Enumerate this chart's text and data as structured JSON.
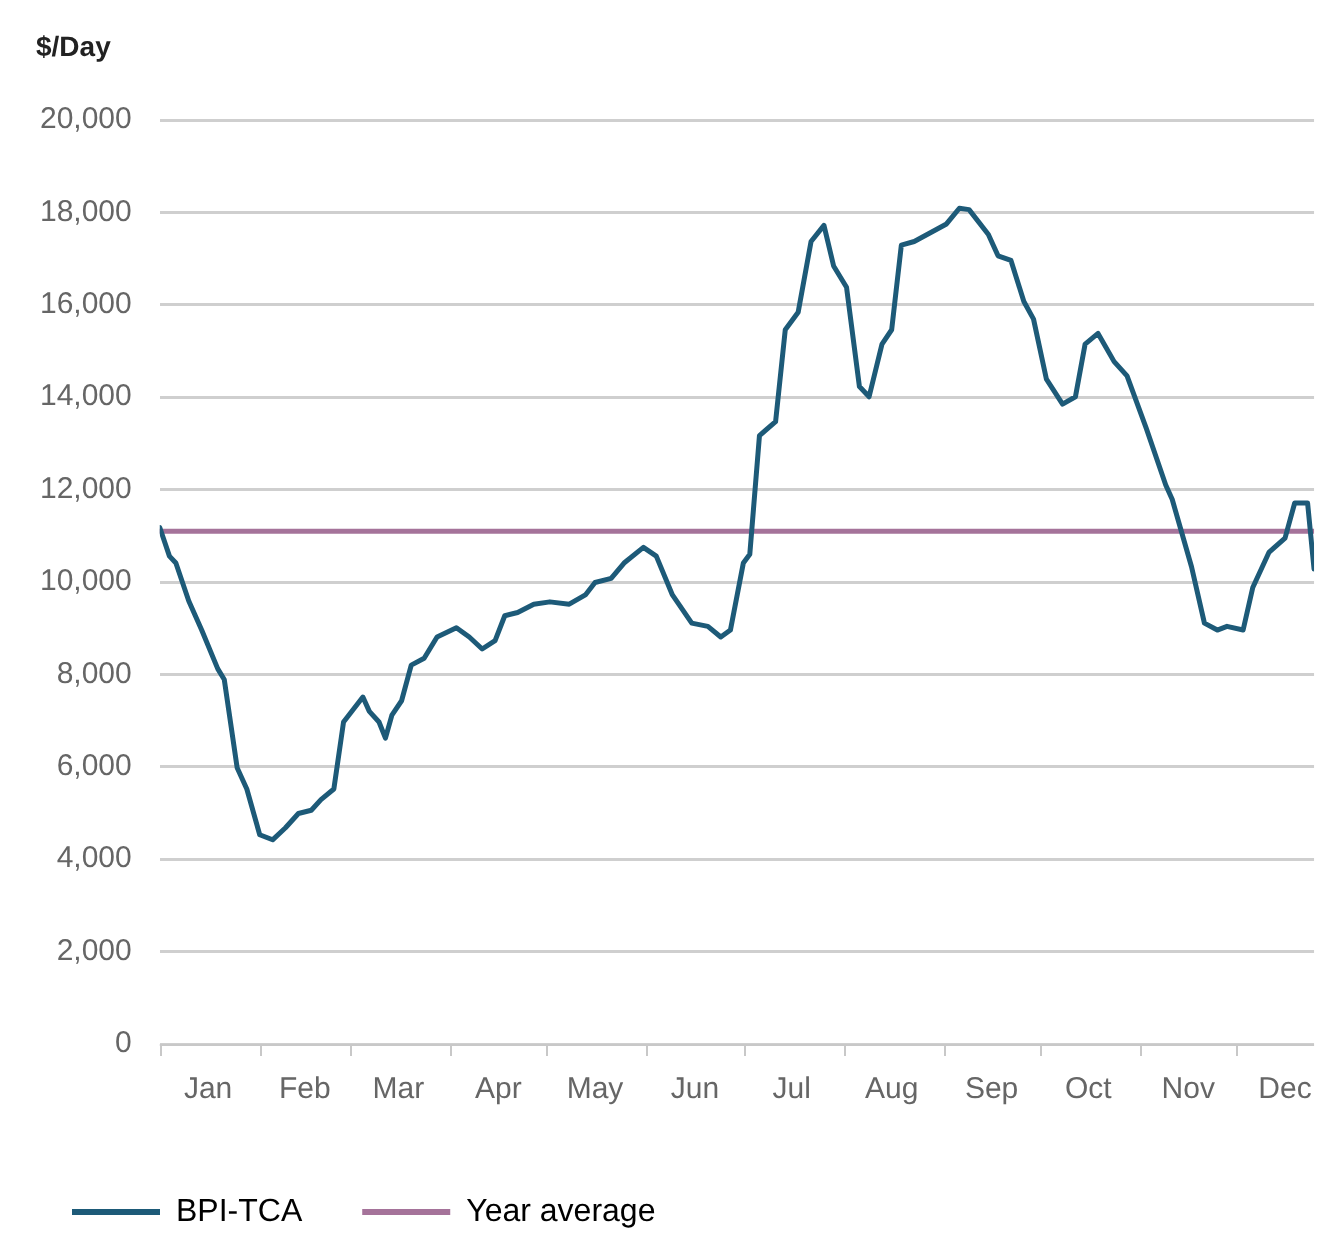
{
  "chart_data": {
    "type": "line",
    "ylabel": "$/Day",
    "xlim": [
      "--01-01",
      "--12-25"
    ],
    "xticks": [
      {
        "value": "--01-01",
        "label": null
      },
      {
        "value": "--01-16",
        "label": "Jan"
      },
      {
        "value": "--02-01",
        "label": null
      },
      {
        "value": "--02-15",
        "label": "Feb"
      },
      {
        "value": "--03-01",
        "label": null
      },
      {
        "value": "--03-16",
        "label": "Mar"
      },
      {
        "value": "--04-01",
        "label": null
      },
      {
        "value": "--04-16",
        "label": "Apr"
      },
      {
        "value": "--05-01",
        "label": null
      },
      {
        "value": "--05-16",
        "label": "May"
      },
      {
        "value": "--06-01",
        "label": null
      },
      {
        "value": "--06-16",
        "label": "Jun"
      },
      {
        "value": "--07-01",
        "label": null
      },
      {
        "value": "--07-16",
        "label": "Jul"
      },
      {
        "value": "--08-01",
        "label": null
      },
      {
        "value": "--08-16",
        "label": "Aug"
      },
      {
        "value": "--09-01",
        "label": null
      },
      {
        "value": "--09-16",
        "label": "Sep"
      },
      {
        "value": "--10-01",
        "label": null
      },
      {
        "value": "--10-16",
        "label": "Oct"
      },
      {
        "value": "--11-01",
        "label": null
      },
      {
        "value": "--11-16",
        "label": "Nov"
      },
      {
        "value": "--12-01",
        "label": null
      },
      {
        "value": "--12-16",
        "label": "Dec"
      }
    ],
    "ylim": [
      0,
      20000
    ],
    "yticks": [
      {
        "value": 0,
        "label": "0"
      },
      {
        "value": 2000,
        "label": "2,000"
      },
      {
        "value": 4000,
        "label": "4,000"
      },
      {
        "value": 6000,
        "label": "6,000"
      },
      {
        "value": 8000,
        "label": "8,000"
      },
      {
        "value": 10000,
        "label": "10,000"
      },
      {
        "value": 12000,
        "label": "12,000"
      },
      {
        "value": 14000,
        "label": "14,000"
      },
      {
        "value": 16000,
        "label": "16,000"
      },
      {
        "value": 18000,
        "label": "18,000"
      },
      {
        "value": 20000,
        "label": "20,000"
      }
    ],
    "grid": "y",
    "legend": "bottom left",
    "marker": "none",
    "line_style": "solid",
    "series": [
      {
        "name": "BPI-TCA",
        "color": "#1d5a78",
        "x": [
          "--01-01",
          "--01-04",
          "--01-06",
          "--01-10",
          "--01-14",
          "--01-19",
          "--01-21",
          "--01-25",
          "--01-28",
          "--02-01",
          "--02-05",
          "--02-09",
          "--02-13",
          "--02-17",
          "--02-20",
          "--02-24",
          "--02-27",
          "--03-05",
          "--03-07",
          "--03-10",
          "--03-12",
          "--03-14",
          "--03-17",
          "--03-20",
          "--03-24",
          "--03-28",
          "--04-03",
          "--04-07",
          "--04-11",
          "--04-15",
          "--04-18",
          "--04-22",
          "--04-27",
          "--05-02",
          "--05-08",
          "--05-13",
          "--05-16",
          "--05-21",
          "--05-25",
          "--05-31",
          "--06-04",
          "--06-09",
          "--06-15",
          "--06-20",
          "--06-24",
          "--06-27",
          "--07-01",
          "--07-03",
          "--07-06",
          "--07-11",
          "--07-14",
          "--07-18",
          "--07-22",
          "--07-26",
          "--07-29",
          "--08-02",
          "--08-06",
          "--08-09",
          "--08-13",
          "--08-16",
          "--08-19",
          "--08-23",
          "--08-27",
          "--09-02",
          "--09-06",
          "--09-09",
          "--09-15",
          "--09-18",
          "--09-22",
          "--09-26",
          "--09-29",
          "--10-03",
          "--10-08",
          "--10-12",
          "--10-15",
          "--10-19",
          "--10-24",
          "--10-28",
          "--11-03",
          "--11-09",
          "--11-11",
          "--11-17",
          "--11-21",
          "--11-25",
          "--11-28",
          "--12-03",
          "--12-06",
          "--12-11",
          "--12-16",
          "--12-19",
          "--12-23",
          "--12-25"
        ],
        "values": [
          11180,
          10560,
          10410,
          9590,
          8960,
          8120,
          7890,
          5980,
          5520,
          4530,
          4420,
          4680,
          4990,
          5060,
          5290,
          5520,
          6970,
          7510,
          7200,
          6970,
          6620,
          7120,
          7430,
          8200,
          8350,
          8810,
          9010,
          8810,
          8550,
          8730,
          9270,
          9340,
          9520,
          9570,
          9520,
          9720,
          9990,
          10080,
          10410,
          10750,
          10560,
          9720,
          9110,
          9040,
          8810,
          8960,
          10410,
          10600,
          13170,
          13470,
          15460,
          15840,
          17370,
          17720,
          16840,
          16380,
          14230,
          14010,
          15150,
          15460,
          17290,
          17370,
          17520,
          17750,
          18090,
          18060,
          17520,
          17060,
          16960,
          16070,
          15690,
          14390,
          13850,
          14010,
          15150,
          15380,
          14770,
          14460,
          13320,
          12100,
          11790,
          10330,
          9110,
          8960,
          9040,
          8960,
          9880,
          10640,
          10950,
          11710,
          11710,
          10280
        ]
      },
      {
        "name": "Year average",
        "color": "#a5739a",
        "x": [
          "--01-01",
          "--12-25"
        ],
        "values": [
          11100,
          11100
        ]
      }
    ]
  }
}
